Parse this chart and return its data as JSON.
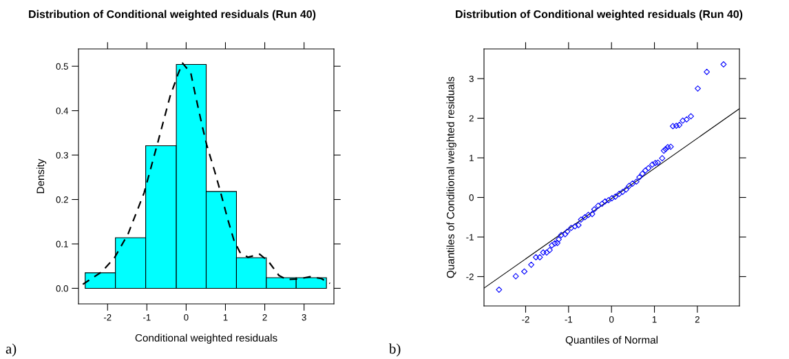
{
  "chart_data": [
    {
      "type": "histogram",
      "title": "Distribution of Conditional weighted residuals (Run 40)",
      "xlabel": "Conditional weighted residuals",
      "ylabel": "Density",
      "xlim": [
        -2.74,
        3.76
      ],
      "xticks": [
        -2,
        -1,
        0,
        1,
        2,
        3
      ],
      "ylim": [
        -0.035,
        0.539
      ],
      "yticks": [
        {
          "value": 0,
          "label": "0.0"
        },
        0.1,
        0.2,
        0.3,
        0.4,
        0.5
      ],
      "grid": false,
      "annotations": [
        "a)"
      ],
      "series": [
        {
          "color": "#00ffff",
          "bins": [
            -2.57,
            -1.8,
            -1.03,
            -0.25,
            0.51,
            1.28,
            2.04,
            2.8,
            3.57
          ],
          "values": [
            0.035,
            0.114,
            0.321,
            0.504,
            0.218,
            0.069,
            0.024,
            0.024
          ]
        },
        {
          "type": "line",
          "color": "#000000",
          "line_style": "dashed",
          "x": [
            -2.63,
            -2.15,
            -1.83,
            -1.48,
            -1.07,
            -0.72,
            -0.41,
            -0.2,
            -0.09,
            0.12,
            0.23,
            0.41,
            0.52,
            0.73,
            0.88,
            1.05,
            1.22,
            1.37,
            1.57,
            1.87,
            2.1,
            2.36,
            2.56,
            2.85,
            3.15,
            3.44,
            3.66
          ],
          "values": [
            0.009,
            0.037,
            0.068,
            0.122,
            0.215,
            0.329,
            0.432,
            0.484,
            0.507,
            0.484,
            0.437,
            0.365,
            0.324,
            0.262,
            0.215,
            0.158,
            0.107,
            0.081,
            0.07,
            0.077,
            0.06,
            0.029,
            0.02,
            0.021,
            0.026,
            0.022,
            0.011
          ]
        }
      ]
    },
    {
      "type": "scatter",
      "title": "Distribution of Conditional weighted residuals (Run 40)",
      "xlabel": "Quantiles of Normal",
      "ylabel": "Quantiles of Conditional weighted residuals",
      "xlim": [
        -2.97,
        2.98
      ],
      "xticks": [
        -2,
        -1,
        0,
        1,
        2
      ],
      "ylim": [
        -2.74,
        3.75
      ],
      "yticks": [
        -2,
        -1,
        0,
        1,
        2,
        3
      ],
      "grid": false,
      "annotations": [
        "b)"
      ],
      "series": [
        {
          "color": "#0000ff",
          "marker": "diamond",
          "x": [
            -2.62,
            -2.23,
            -2.03,
            -1.87,
            -1.76,
            -1.67,
            -1.59,
            -1.51,
            -1.44,
            -1.39,
            -1.32,
            -1.26,
            -1.23,
            -1.17,
            -1.08,
            -1.03,
            -0.94,
            -0.85,
            -0.77,
            -0.71,
            -0.62,
            -0.54,
            -0.45,
            -0.4,
            -0.31,
            -0.22,
            -0.15,
            -0.07,
            0.01,
            0.09,
            0.18,
            0.26,
            0.34,
            0.41,
            0.49,
            0.58,
            0.65,
            0.72,
            0.79,
            0.86,
            0.95,
            1.02,
            1.08,
            1.18,
            1.22,
            1.26,
            1.31,
            1.38,
            1.43,
            1.51,
            1.58,
            1.66,
            1.75,
            1.85,
            2.01,
            2.22,
            2.61
          ],
          "values": [
            -2.33,
            -1.99,
            -1.87,
            -1.7,
            -1.51,
            -1.51,
            -1.39,
            -1.39,
            -1.33,
            -1.21,
            -1.16,
            -1.15,
            -1.06,
            -0.95,
            -0.93,
            -0.86,
            -0.77,
            -0.73,
            -0.7,
            -0.56,
            -0.5,
            -0.44,
            -0.42,
            -0.3,
            -0.21,
            -0.16,
            -0.1,
            -0.07,
            -0.02,
            0.02,
            0.09,
            0.14,
            0.2,
            0.29,
            0.35,
            0.4,
            0.51,
            0.6,
            0.68,
            0.74,
            0.83,
            0.87,
            0.88,
            0.99,
            1.18,
            1.22,
            1.27,
            1.28,
            1.8,
            1.81,
            1.83,
            1.94,
            1.97,
            2.05,
            2.75,
            3.17,
            3.36
          ]
        },
        {
          "type": "line",
          "color": "#000000",
          "line_style": "solid",
          "x": [
            -2.97,
            2.98
          ],
          "values": [
            -2.29,
            2.24
          ]
        }
      ]
    }
  ]
}
